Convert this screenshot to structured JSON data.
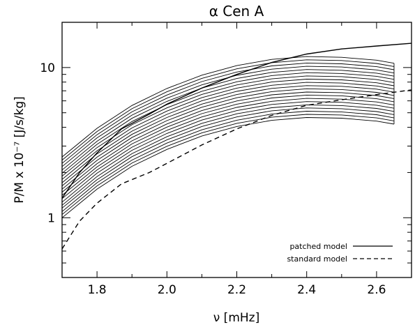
{
  "chart_data": {
    "type": "line",
    "title": "α Cen A",
    "xlabel": "ν [mHz]",
    "ylabel": "P/M x 10⁻⁷ [J/s/kg]",
    "xlim": [
      1.7,
      2.7
    ],
    "ylim": [
      0.4,
      20
    ],
    "yscale": "log",
    "x_ticks": [
      1.8,
      2.0,
      2.2,
      2.4,
      2.6
    ],
    "x_tick_labels": [
      "1.8",
      "2.0",
      "2.2",
      "2.4",
      "2.6"
    ],
    "y_ticks": [
      1,
      10
    ],
    "y_tick_labels": [
      "1",
      "10"
    ],
    "grid": false,
    "legend_position": "bottom-right",
    "band": {
      "x": [
        1.7,
        1.8,
        1.9,
        2.0,
        2.1,
        2.2,
        2.3,
        2.4,
        2.5,
        2.6,
        2.65
      ],
      "curves": [
        [
          1.0,
          1.55,
          2.2,
          2.85,
          3.5,
          4.05,
          4.45,
          4.65,
          4.6,
          4.4,
          4.2
        ],
        [
          1.05,
          1.63,
          2.31,
          2.99,
          3.67,
          4.25,
          4.67,
          4.88,
          4.83,
          4.62,
          4.41
        ],
        [
          1.1,
          1.71,
          2.42,
          3.14,
          3.85,
          4.46,
          4.9,
          5.12,
          5.06,
          4.85,
          4.62
        ],
        [
          1.16,
          1.79,
          2.55,
          3.3,
          4.05,
          4.69,
          5.15,
          5.38,
          5.32,
          5.09,
          4.86
        ],
        [
          1.21,
          1.88,
          2.67,
          3.46,
          4.25,
          4.92,
          5.4,
          5.64,
          5.58,
          5.34,
          5.1
        ],
        [
          1.27,
          1.98,
          2.81,
          3.64,
          4.47,
          5.17,
          5.68,
          5.93,
          5.87,
          5.61,
          5.36
        ],
        [
          1.34,
          2.08,
          2.95,
          3.82,
          4.69,
          5.43,
          5.96,
          6.23,
          6.16,
          5.9,
          5.63
        ],
        [
          1.41,
          2.18,
          3.1,
          4.01,
          4.93,
          5.7,
          6.27,
          6.55,
          6.48,
          6.2,
          5.92
        ],
        [
          1.48,
          2.29,
          3.25,
          4.21,
          5.17,
          5.99,
          6.58,
          6.87,
          6.8,
          6.51,
          6.21
        ],
        [
          1.55,
          2.41,
          3.42,
          4.43,
          5.44,
          6.29,
          6.91,
          7.22,
          7.14,
          6.83,
          6.52
        ],
        [
          1.63,
          2.53,
          3.59,
          4.65,
          5.71,
          6.61,
          7.26,
          7.58,
          7.5,
          7.18,
          6.85
        ],
        [
          1.71,
          2.66,
          3.77,
          4.88,
          6.0,
          6.94,
          7.62,
          7.97,
          7.88,
          7.54,
          7.2
        ],
        [
          1.8,
          2.79,
          3.96,
          5.13,
          6.3,
          7.29,
          8.01,
          8.37,
          8.28,
          7.92,
          7.56
        ],
        [
          1.89,
          2.93,
          4.16,
          5.39,
          6.62,
          7.66,
          8.41,
          8.79,
          8.7,
          8.32,
          7.94
        ],
        [
          1.98,
          3.08,
          4.37,
          5.66,
          6.95,
          8.04,
          8.84,
          9.24,
          9.13,
          8.74,
          8.34
        ],
        [
          2.08,
          3.23,
          4.59,
          5.95,
          7.3,
          8.45,
          9.28,
          9.7,
          9.59,
          9.18,
          8.76
        ],
        [
          2.19,
          3.4,
          4.82,
          6.25,
          7.67,
          8.88,
          9.75,
          10.19,
          10.08,
          9.64,
          9.2
        ],
        [
          2.3,
          3.57,
          5.07,
          6.56,
          8.06,
          9.33,
          10.25,
          10.71,
          10.59,
          10.13,
          9.67
        ],
        [
          2.42,
          3.75,
          5.32,
          6.9,
          8.47,
          9.8,
          10.77,
          11.25,
          11.13,
          10.65,
          10.16
        ],
        [
          2.54,
          3.94,
          5.59,
          7.25,
          8.9,
          10.3,
          11.32,
          11.83,
          11.7,
          11.19,
          10.68
        ]
      ]
    },
    "series": [
      {
        "name": "patched model",
        "style": "solid",
        "x": [
          1.7,
          1.75,
          1.8,
          1.87,
          1.95,
          2.0,
          2.1,
          2.2,
          2.3,
          2.4,
          2.5,
          2.6,
          2.7
        ],
        "y": [
          1.35,
          2.0,
          2.7,
          3.9,
          4.9,
          5.7,
          7.3,
          9.0,
          10.8,
          12.3,
          13.3,
          13.9,
          14.5
        ]
      },
      {
        "name": "standard model",
        "style": "dashed",
        "x": [
          1.7,
          1.75,
          1.8,
          1.87,
          1.95,
          2.0,
          2.1,
          2.2,
          2.3,
          2.4,
          2.5,
          2.6,
          2.7
        ],
        "y": [
          0.62,
          0.95,
          1.25,
          1.68,
          2.0,
          2.3,
          3.05,
          3.9,
          4.8,
          5.6,
          6.1,
          6.6,
          7.1
        ]
      }
    ]
  }
}
